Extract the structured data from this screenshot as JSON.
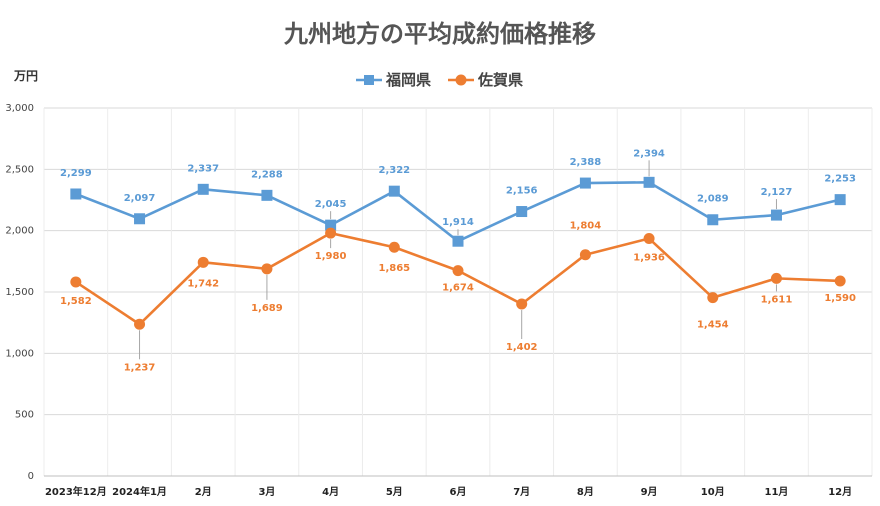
{
  "chart_data": {
    "type": "line",
    "title": "九州地方の平均成約価格推移",
    "unit_label": "万円",
    "categories": [
      "2023年12月",
      "2024年1月",
      "2月",
      "3月",
      "4月",
      "5月",
      "6月",
      "7月",
      "8月",
      "9月",
      "10月",
      "11月",
      "12月"
    ],
    "ylim": [
      0,
      3000
    ],
    "yticks": [
      0,
      500,
      1000,
      1500,
      2000,
      2500,
      3000
    ],
    "ytick_labels": [
      "0",
      "500",
      "1,000",
      "1,500",
      "2,000",
      "2,500",
      "3,000"
    ],
    "grid": true,
    "legend_position": "top",
    "series": [
      {
        "name": "福岡県",
        "color": "#5b9bd5",
        "marker": "square",
        "values": [
          2299,
          2097,
          2337,
          2288,
          2045,
          2322,
          1914,
          2156,
          2388,
          2394,
          2089,
          2127,
          2253
        ],
        "labels": [
          "2,299",
          "2,097",
          "2,337",
          "2,288",
          "2,045",
          "2,322",
          "1,914",
          "2,156",
          "2,388",
          "2,394",
          "2,089",
          "2,127",
          "2,253"
        ]
      },
      {
        "name": "佐賀県",
        "color": "#ed7d31",
        "marker": "circle",
        "values": [
          1582,
          1237,
          1742,
          1689,
          1980,
          1865,
          1674,
          1402,
          1804,
          1936,
          1454,
          1611,
          1590
        ],
        "labels": [
          "1,582",
          "1,237",
          "1,742",
          "1,689",
          "1,980",
          "1,865",
          "1,674",
          "1,402",
          "1,804",
          "1,936",
          "1,454",
          "1,611",
          "1,590"
        ]
      }
    ]
  }
}
